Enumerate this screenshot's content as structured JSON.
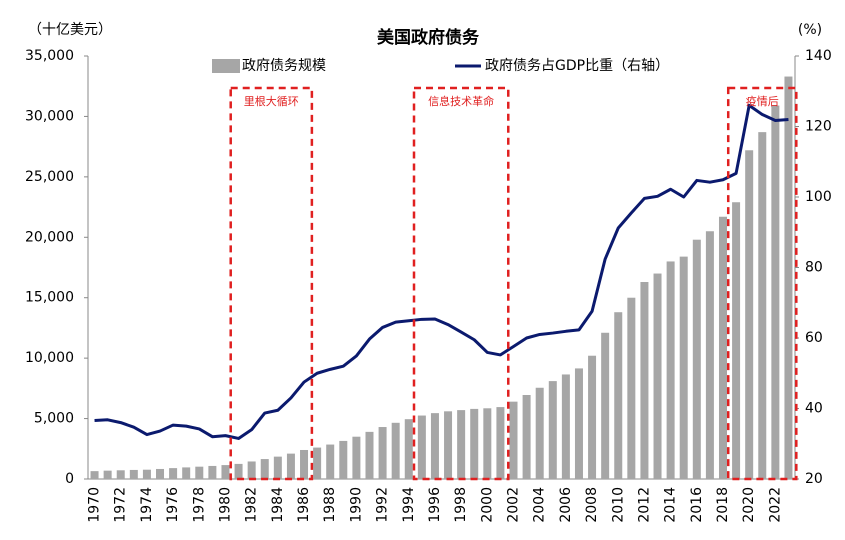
{
  "chart_data": {
    "type": "bar-line",
    "title": "美国政府债务",
    "y_label": "（十亿美元）",
    "y2_label": "(%)",
    "categories": [
      "1970",
      null,
      "1972",
      null,
      "1974",
      null,
      "1976",
      null,
      "1978",
      null,
      "1980",
      null,
      "1982",
      null,
      "1984",
      null,
      "1986",
      null,
      "1988",
      null,
      "1990",
      null,
      "1992",
      null,
      "1994",
      null,
      "1996",
      null,
      "1998",
      null,
      "2000",
      null,
      "2002",
      null,
      "2004",
      null,
      "2006",
      null,
      "2008",
      null,
      "2010",
      null,
      "2012",
      null,
      "2014",
      null,
      "2016",
      null,
      "2018",
      null,
      "2020",
      null,
      "2022",
      null
    ],
    "series": [
      {
        "name": "政府债务规模",
        "type": "bar",
        "color": "#a6a6a6",
        "values": [
          650,
          690,
          720,
          750,
          770,
          830,
          900,
          960,
          1020,
          1080,
          1150,
          1250,
          1450,
          1650,
          1850,
          2100,
          2400,
          2600,
          2850,
          3150,
          3500,
          3900,
          4300,
          4650,
          4950,
          5250,
          5450,
          5600,
          5700,
          5800,
          5850,
          5950,
          6400,
          6950,
          7550,
          8100,
          8650,
          9150,
          10200,
          12100,
          13800,
          15000,
          16300,
          17000,
          18000,
          18400,
          19800,
          20500,
          21700,
          22900,
          27200,
          28700,
          30900,
          33300
        ]
      },
      {
        "name": "政府债务占GDP比重（右轴）",
        "type": "line",
        "axis": "y2",
        "color": "#0b1a6e",
        "values": [
          36.6,
          36.8,
          36,
          34.7,
          32.6,
          33.6,
          35.3,
          35,
          34.2,
          32,
          32.3,
          31.5,
          34,
          38.7,
          39.5,
          43,
          47.5,
          50,
          51.1,
          52,
          54.9,
          59.7,
          63,
          64.5,
          64.9,
          65.3,
          65.4,
          63.8,
          61.7,
          59.5,
          55.9,
          55.2,
          57.6,
          60,
          61,
          61.4,
          61.9,
          62.3,
          67.6,
          82.4,
          91.2,
          95.5,
          99.6,
          100.2,
          102.2,
          100,
          104.7,
          104.2,
          104.9,
          106.7,
          126,
          123.4,
          121.7,
          122
        ]
      }
    ],
    "ylim": [
      0,
      35000
    ],
    "yticks": [
      0,
      {
        "value": 5000,
        "label": "5,000"
      },
      {
        "value": 10000,
        "label": "10,000"
      },
      {
        "value": 15000,
        "label": "15,000"
      },
      {
        "value": 20000,
        "label": "20,000"
      },
      {
        "value": 25000,
        "label": "25,000"
      },
      {
        "value": 30000,
        "label": "30,000"
      },
      {
        "value": 35000,
        "label": "35,000"
      }
    ],
    "y2lim": [
      20,
      140
    ],
    "y2ticks": [
      20,
      40,
      60,
      80,
      100,
      120,
      140
    ],
    "annotations": [
      {
        "text": "里根大循环",
        "from": 1981,
        "to": 1986,
        "color": "#e02020"
      },
      {
        "text": "信息技术革命",
        "from": 1995,
        "to": 2001,
        "color": "#e02020"
      },
      {
        "text": "疫情后",
        "from": 2019,
        "to": 2023,
        "color": "#e02020"
      }
    ]
  }
}
